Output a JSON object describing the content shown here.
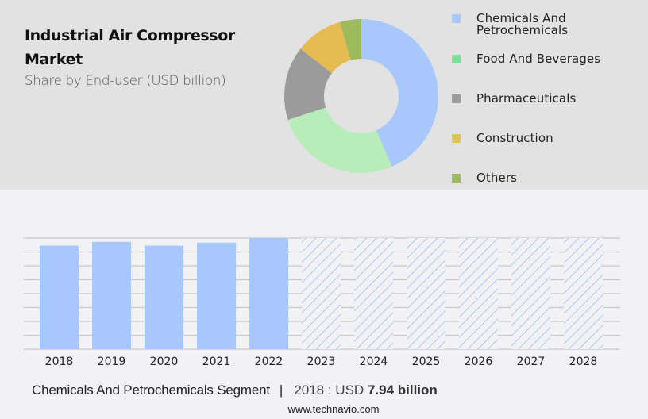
{
  "header": {
    "title": "Industrial Air Compressor Market",
    "subtitle": "Share by End-user (USD billion)"
  },
  "legend": {
    "items": [
      {
        "label": "Chemicals And\nPetrochemicals",
        "color": "#a8c8fd"
      },
      {
        "label": "Food And Beverages",
        "color": "#79e09a"
      },
      {
        "label": "Pharmaceuticals",
        "color": "#9b9b9b"
      },
      {
        "label": "Construction",
        "color": "#e0c355"
      },
      {
        "label": "Others",
        "color": "#9dba5c"
      }
    ]
  },
  "footer": {
    "segment": "Chemicals And Petrochemicals Segment",
    "separator": "|",
    "value_prefix": "2018 : USD",
    "value_bold": "7.94 billion",
    "website": "www.technavio.com"
  },
  "colors": {
    "top_background": "#e2e2e2",
    "bottom_background": "#f2f2f4",
    "bar": "#a8c8fd",
    "gridline": "#c8c8c8"
  },
  "chart_data": [
    {
      "type": "pie",
      "title": "Industrial Air Compressor Market",
      "subtitle": "Share by End-user (USD billion)",
      "donut": true,
      "categories": [
        "Chemicals And Petrochemicals",
        "Food And Beverages",
        "Pharmaceuticals",
        "Construction",
        "Others"
      ],
      "values": [
        43.5,
        26.5,
        15.5,
        10.0,
        4.5
      ],
      "colors": [
        "#a8c8fd",
        "#b8edb9",
        "#9b9b9b",
        "#e5bb52",
        "#9dba5c"
      ],
      "legend_position": "right"
    },
    {
      "type": "bar",
      "title": "Chemicals And Petrochemicals Segment",
      "categories": [
        "2018",
        "2019",
        "2020",
        "2021",
        "2022",
        "2023",
        "2024",
        "2025",
        "2026",
        "2027",
        "2028"
      ],
      "values": [
        7.94,
        8.23,
        7.94,
        8.17,
        8.52,
        null,
        null,
        null,
        null,
        null,
        null
      ],
      "forecast_from": "2023",
      "forecast_style": "hatched",
      "annotation": "2018 : USD 7.94 billion",
      "xlabel": "",
      "ylabel": "",
      "ylim": [
        0,
        8.52
      ],
      "grid": true,
      "gridline_count": 9
    }
  ]
}
